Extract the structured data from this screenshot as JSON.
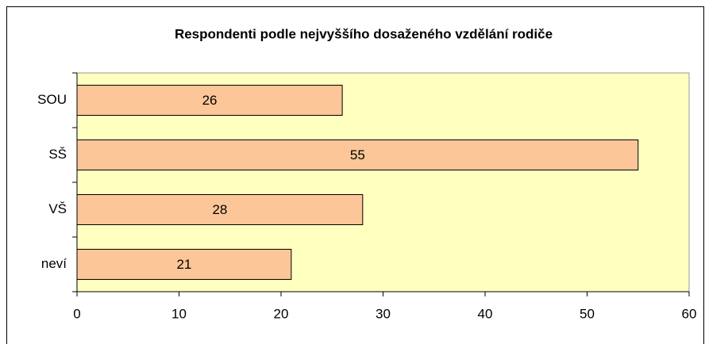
{
  "chart_data": {
    "type": "bar",
    "orientation": "horizontal",
    "title": "Respondenti podle nejvyššího dosaženého vzdělání rodiče",
    "categories": [
      "SOU",
      "SŠ",
      "VŠ",
      "neví"
    ],
    "values": [
      26,
      55,
      28,
      21
    ],
    "color": "#fcc698",
    "plot_background": "#ffffc0",
    "xlim": [
      0,
      60
    ],
    "xticks": [
      0,
      10,
      20,
      30,
      40,
      50,
      60
    ],
    "grid": false
  }
}
